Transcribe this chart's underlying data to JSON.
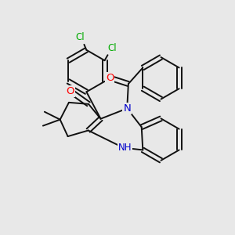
{
  "bg": "#e8e8e8",
  "bc": "#111111",
  "lw": 1.4,
  "dbo": 0.01,
  "colors": {
    "Cl": "#00aa00",
    "O": "#ff0000",
    "N": "#0000cc",
    "H": "#007700"
  },
  "fs": 8.0
}
